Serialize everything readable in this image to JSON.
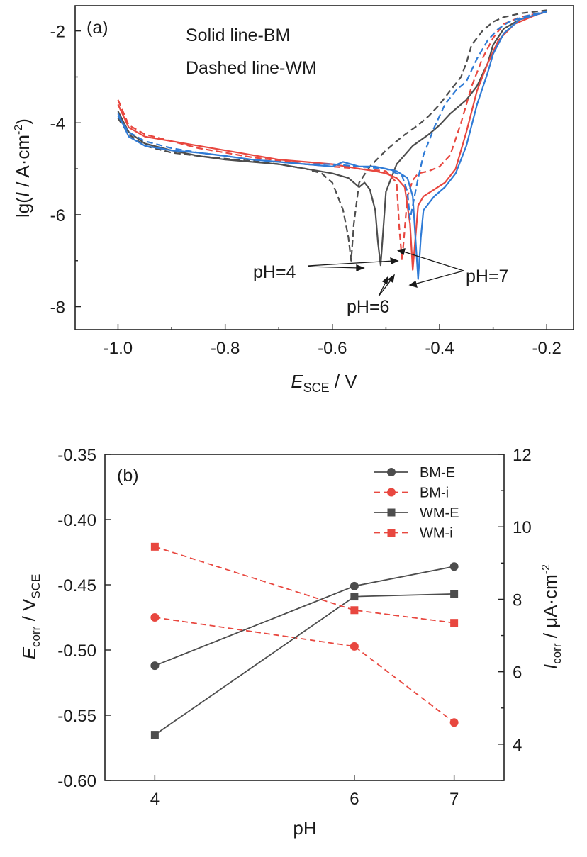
{
  "colors": {
    "bm_a": "#4d4d4d",
    "ph4": "#4d4d4d",
    "ph6": "#e8473f",
    "ph7": "#2f7bd6",
    "axis": "#222222"
  },
  "chart_data": [
    {
      "type": "line",
      "panel": "(a)",
      "notes": [
        "Solid line-BM",
        "Dashed line-WM"
      ],
      "xlabel_main": "E",
      "xlabel_sub": "SCE",
      "xlabel_unit": " / V",
      "ylabel_parts": [
        "lg(",
        "I",
        " / A·cm",
        "-2",
        ")"
      ],
      "xlim": [
        -1.08,
        -0.15
      ],
      "ylim": [
        -8.5,
        -1.45
      ],
      "xticks": [
        -1.0,
        -0.8,
        -0.6,
        -0.4,
        -0.2
      ],
      "xtick_labels": [
        "-1.0",
        "-0.8",
        "-0.6",
        "-0.4",
        "-0.2"
      ],
      "yticks": [
        -8,
        -6,
        -4,
        -2
      ],
      "ytick_labels": [
        "-8",
        "-6",
        "-4",
        "-2"
      ],
      "annotations": [
        "pH=4",
        "pH=6",
        "pH=7"
      ],
      "series": [
        {
          "material": "WM",
          "ph": 4,
          "style": "dashed",
          "x": [
            -1.0,
            -0.98,
            -0.95,
            -0.9,
            -0.85,
            -0.8,
            -0.75,
            -0.7,
            -0.65,
            -0.62,
            -0.6,
            -0.58,
            -0.57,
            -0.565,
            -0.56,
            -0.55,
            -0.53,
            -0.5,
            -0.47,
            -0.44,
            -0.42,
            -0.4,
            -0.38,
            -0.36,
            -0.35,
            -0.34,
            -0.32,
            -0.3,
            -0.28,
            -0.25,
            -0.2
          ],
          "y": [
            -3.9,
            -4.25,
            -4.5,
            -4.65,
            -4.72,
            -4.78,
            -4.83,
            -4.9,
            -5.0,
            -5.1,
            -5.3,
            -5.9,
            -6.5,
            -7.0,
            -6.2,
            -5.3,
            -4.95,
            -4.6,
            -4.3,
            -4.05,
            -3.85,
            -3.6,
            -3.3,
            -3.0,
            -2.7,
            -2.3,
            -2.0,
            -1.8,
            -1.7,
            -1.62,
            -1.55
          ]
        },
        {
          "material": "BM",
          "ph": 4,
          "style": "solid",
          "x": [
            -1.0,
            -0.98,
            -0.95,
            -0.9,
            -0.85,
            -0.8,
            -0.75,
            -0.7,
            -0.65,
            -0.6,
            -0.57,
            -0.55,
            -0.54,
            -0.53,
            -0.52,
            -0.515,
            -0.51,
            -0.505,
            -0.5,
            -0.48,
            -0.45,
            -0.42,
            -0.4,
            -0.38,
            -0.35,
            -0.33,
            -0.31,
            -0.3,
            -0.28,
            -0.25,
            -0.2
          ],
          "y": [
            -3.75,
            -4.2,
            -4.45,
            -4.6,
            -4.72,
            -4.8,
            -4.85,
            -4.9,
            -5.0,
            -5.1,
            -5.2,
            -5.4,
            -5.3,
            -5.45,
            -5.9,
            -6.6,
            -7.1,
            -6.3,
            -5.5,
            -4.9,
            -4.5,
            -4.25,
            -4.05,
            -3.8,
            -3.5,
            -3.2,
            -2.7,
            -2.3,
            -1.95,
            -1.75,
            -1.58
          ]
        },
        {
          "material": "WM",
          "ph": 6,
          "style": "dashed",
          "x": [
            -1.0,
            -0.98,
            -0.95,
            -0.9,
            -0.85,
            -0.8,
            -0.75,
            -0.7,
            -0.65,
            -0.6,
            -0.55,
            -0.5,
            -0.48,
            -0.475,
            -0.47,
            -0.465,
            -0.46,
            -0.45,
            -0.44,
            -0.42,
            -0.4,
            -0.38,
            -0.36,
            -0.34,
            -0.32,
            -0.3,
            -0.28,
            -0.25,
            -0.2
          ],
          "y": [
            -3.5,
            -4.05,
            -4.25,
            -4.4,
            -4.55,
            -4.65,
            -4.75,
            -4.82,
            -4.9,
            -4.95,
            -5.0,
            -5.05,
            -5.3,
            -6.3,
            -7.0,
            -6.3,
            -5.6,
            -5.25,
            -5.1,
            -5.05,
            -4.95,
            -4.7,
            -4.0,
            -3.2,
            -2.6,
            -2.15,
            -1.85,
            -1.7,
            -1.58
          ]
        },
        {
          "material": "BM",
          "ph": 6,
          "style": "solid",
          "x": [
            -1.0,
            -0.98,
            -0.95,
            -0.9,
            -0.85,
            -0.8,
            -0.75,
            -0.7,
            -0.65,
            -0.6,
            -0.55,
            -0.52,
            -0.5,
            -0.48,
            -0.465,
            -0.455,
            -0.45,
            -0.445,
            -0.44,
            -0.43,
            -0.41,
            -0.39,
            -0.37,
            -0.35,
            -0.33,
            -0.31,
            -0.29,
            -0.26,
            -0.22,
            -0.2
          ],
          "y": [
            -3.6,
            -4.1,
            -4.3,
            -4.4,
            -4.5,
            -4.6,
            -4.7,
            -4.8,
            -4.85,
            -4.9,
            -5.0,
            -5.05,
            -5.1,
            -5.2,
            -5.4,
            -6.2,
            -7.2,
            -6.5,
            -5.8,
            -5.6,
            -5.45,
            -5.3,
            -5.0,
            -4.2,
            -3.3,
            -2.7,
            -2.2,
            -1.85,
            -1.65,
            -1.58
          ]
        },
        {
          "material": "WM",
          "ph": 7,
          "style": "dashed",
          "x": [
            -1.0,
            -0.98,
            -0.95,
            -0.9,
            -0.85,
            -0.8,
            -0.75,
            -0.7,
            -0.65,
            -0.6,
            -0.55,
            -0.5,
            -0.47,
            -0.46,
            -0.455,
            -0.45,
            -0.44,
            -0.43,
            -0.41,
            -0.39,
            -0.37,
            -0.35,
            -0.33,
            -0.31,
            -0.29,
            -0.27,
            -0.24,
            -0.2
          ],
          "y": [
            -3.85,
            -4.2,
            -4.4,
            -4.55,
            -4.65,
            -4.72,
            -4.8,
            -4.85,
            -4.9,
            -4.9,
            -4.95,
            -5.0,
            -5.15,
            -5.5,
            -6.1,
            -5.8,
            -5.2,
            -4.7,
            -4.1,
            -3.6,
            -3.3,
            -3.1,
            -2.6,
            -2.2,
            -1.95,
            -1.8,
            -1.68,
            -1.57
          ]
        },
        {
          "material": "BM",
          "ph": 7,
          "style": "solid",
          "x": [
            -1.0,
            -0.98,
            -0.95,
            -0.9,
            -0.85,
            -0.8,
            -0.75,
            -0.7,
            -0.65,
            -0.6,
            -0.58,
            -0.55,
            -0.52,
            -0.5,
            -0.48,
            -0.46,
            -0.45,
            -0.445,
            -0.44,
            -0.435,
            -0.43,
            -0.41,
            -0.39,
            -0.37,
            -0.35,
            -0.33,
            -0.31,
            -0.3,
            -0.28,
            -0.25,
            -0.2
          ],
          "y": [
            -3.8,
            -4.3,
            -4.5,
            -4.6,
            -4.65,
            -4.72,
            -4.8,
            -4.85,
            -4.9,
            -4.95,
            -4.85,
            -4.95,
            -4.95,
            -5.0,
            -5.05,
            -5.2,
            -5.6,
            -6.5,
            -7.4,
            -6.5,
            -5.9,
            -5.6,
            -5.4,
            -5.1,
            -4.5,
            -3.6,
            -2.9,
            -2.5,
            -2.05,
            -1.75,
            -1.58
          ]
        }
      ]
    },
    {
      "type": "line",
      "panel": "(b)",
      "xlabel": "pH",
      "categories": [
        "4",
        "6",
        "7"
      ],
      "x": [
        4,
        6,
        7
      ],
      "xlim": [
        3.5,
        7.5
      ],
      "ylabel_left_main": "E",
      "ylabel_left_sub1": "corr",
      "ylabel_left_mid": " / V",
      "ylabel_left_sub2": "SCE",
      "ylim_left": [
        -0.6,
        -0.35
      ],
      "yticks_left": [
        -0.6,
        -0.55,
        -0.5,
        -0.45,
        -0.4,
        -0.35
      ],
      "ytick_labels_left": [
        "-0.60",
        "-0.55",
        "-0.50",
        "-0.45",
        "-0.40",
        "-0.35"
      ],
      "ylabel_right_main": "I",
      "ylabel_right_sub": "corr",
      "ylabel_right_unit": " / μA·cm",
      "ylabel_right_sup": "-2",
      "ylim_right": [
        3,
        12
      ],
      "yticks_right": [
        4,
        6,
        8,
        10,
        12
      ],
      "ytick_labels_right": [
        "4",
        "6",
        "8",
        "10",
        "12"
      ],
      "legend_position": "top-right",
      "series": [
        {
          "name": "BM-E",
          "axis": "left",
          "marker": "circle",
          "style": "solid",
          "values": [
            -0.512,
            -0.451,
            -0.436
          ]
        },
        {
          "name": "BM-i",
          "axis": "right",
          "marker": "circle",
          "style": "dashed",
          "values": [
            7.5,
            6.7,
            4.6
          ]
        },
        {
          "name": "WM-E",
          "axis": "left",
          "marker": "square",
          "style": "solid",
          "values": [
            -0.565,
            -0.459,
            -0.457
          ]
        },
        {
          "name": "WM-i",
          "axis": "right",
          "marker": "square",
          "style": "dashed",
          "values": [
            9.45,
            7.7,
            7.35
          ]
        }
      ]
    }
  ]
}
